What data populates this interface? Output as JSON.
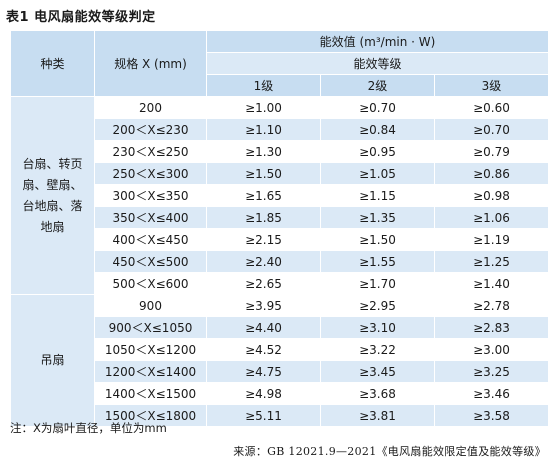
{
  "title": "表1  电风扇能效等级判定",
  "header": {
    "kind": "种类",
    "spec": "规格 X (mm)",
    "efficiency": "能效值 (m³/min · W)",
    "grade_group": "能效等级",
    "grades": [
      "1级",
      "2级",
      "3级"
    ]
  },
  "groups": [
    {
      "label": "台扇、转页扇、壁扇、台地扇、落地扇",
      "rows": [
        {
          "spec": "200",
          "g1": "≥1.00",
          "g2": "≥0.70",
          "g3": "≥0.60"
        },
        {
          "spec": "200＜X≤230",
          "g1": "≥1.10",
          "g2": "≥0.84",
          "g3": "≥0.70"
        },
        {
          "spec": "230＜X≤250",
          "g1": "≥1.30",
          "g2": "≥0.95",
          "g3": "≥0.79"
        },
        {
          "spec": "250＜X≤300",
          "g1": "≥1.50",
          "g2": "≥1.05",
          "g3": "≥0.86"
        },
        {
          "spec": "300＜X≤350",
          "g1": "≥1.65",
          "g2": "≥1.15",
          "g3": "≥0.98"
        },
        {
          "spec": "350＜X≤400",
          "g1": "≥1.85",
          "g2": "≥1.35",
          "g3": "≥1.06"
        },
        {
          "spec": "400＜X≤450",
          "g1": "≥2.15",
          "g2": "≥1.50",
          "g3": "≥1.19"
        },
        {
          "spec": "450＜X≤500",
          "g1": "≥2.40",
          "g2": "≥1.55",
          "g3": "≥1.25"
        },
        {
          "spec": "500＜X≤600",
          "g1": "≥2.65",
          "g2": "≥1.70",
          "g3": "≥1.40"
        }
      ]
    },
    {
      "label": "吊扇",
      "rows": [
        {
          "spec": "900",
          "g1": "≥3.95",
          "g2": "≥2.95",
          "g3": "≥2.78"
        },
        {
          "spec": "900＜X≤1050",
          "g1": "≥4.40",
          "g2": "≥3.10",
          "g3": "≥2.83"
        },
        {
          "spec": "1050＜X≤1200",
          "g1": "≥4.52",
          "g2": "≥3.22",
          "g3": "≥3.00"
        },
        {
          "spec": "1200＜X≤1400",
          "g1": "≥4.75",
          "g2": "≥3.45",
          "g3": "≥3.25"
        },
        {
          "spec": "1400＜X≤1500",
          "g1": "≥4.98",
          "g2": "≥3.68",
          "g3": "≥3.46"
        },
        {
          "spec": "1500＜X≤1800",
          "g1": "≥5.11",
          "g2": "≥3.81",
          "g3": "≥3.58"
        }
      ]
    }
  ],
  "note": "注：X为扇叶直径，单位为mm",
  "source": "来源：GB 12021.9—2021《电风扇能效限定值及能效等级》",
  "colors": {
    "header": "#c7ddf1",
    "band": "#dbe9f6"
  }
}
